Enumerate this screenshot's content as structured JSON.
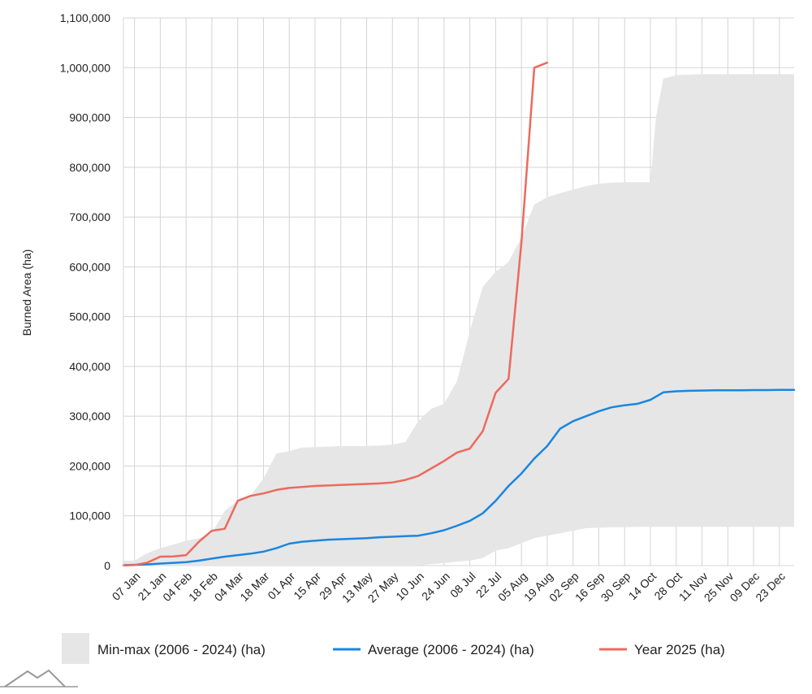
{
  "chart_data": {
    "type": "area",
    "title": "",
    "xlabel": "",
    "ylabel": "Burned Area (ha)",
    "ylim": [
      0,
      1100000
    ],
    "yticks": [
      0,
      100000,
      200000,
      300000,
      400000,
      500000,
      600000,
      700000,
      800000,
      900000,
      1000000,
      1100000
    ],
    "ytick_labels": [
      "0",
      "100,000",
      "200,000",
      "300,000",
      "400,000",
      "500,000",
      "600,000",
      "700,000",
      "800,000",
      "900,000",
      "1,000,000",
      "1,100,000"
    ],
    "x_unit": "day of year",
    "xlim": [
      1,
      365
    ],
    "xticks": [
      7,
      21,
      35,
      49,
      63,
      77,
      91,
      105,
      119,
      133,
      147,
      161,
      175,
      189,
      203,
      217,
      231,
      245,
      259,
      273,
      287,
      301,
      315,
      329,
      343,
      357
    ],
    "xtick_labels": [
      "07 Jan",
      "21 Jan",
      "04 Feb",
      "18 Feb",
      "04 Mar",
      "18 Mar",
      "01 Apr",
      "15 Apr",
      "29 Apr",
      "13 May",
      "27 May",
      "10 Jun",
      "24 Jun",
      "08 Jul",
      "22 Jul",
      "05 Aug",
      "19 Aug",
      "02 Sep",
      "16 Sep",
      "30 Sep",
      "14 Oct",
      "28 Oct",
      "11 Nov",
      "25 Nov",
      "09 Dec",
      "23 Dec"
    ],
    "grid": true,
    "legend_position": "bottom",
    "series": [
      {
        "name": "Min-max (2006 - 2024) (ha)",
        "kind": "band",
        "color": "#e6e6e6",
        "x": [
          1,
          7,
          14,
          21,
          28,
          35,
          42,
          49,
          56,
          63,
          70,
          77,
          84,
          91,
          98,
          105,
          112,
          119,
          126,
          133,
          140,
          147,
          154,
          161,
          168,
          175,
          182,
          189,
          196,
          203,
          210,
          217,
          224,
          231,
          238,
          245,
          252,
          259,
          266,
          273,
          280,
          287,
          290,
          294,
          301,
          308,
          315,
          322,
          329,
          336,
          343,
          350,
          357,
          365
        ],
        "upper": [
          10000,
          10000,
          25000,
          35000,
          42000,
          50000,
          55000,
          65000,
          110000,
          130000,
          140000,
          175000,
          225000,
          230000,
          237000,
          238000,
          239000,
          240000,
          240000,
          240000,
          241000,
          243000,
          248000,
          290000,
          315000,
          325000,
          370000,
          470000,
          560000,
          590000,
          610000,
          660000,
          725000,
          740000,
          748000,
          755000,
          762000,
          767000,
          769000,
          770000,
          770000,
          770000,
          900000,
          978000,
          985000,
          986000,
          987000,
          987000,
          987000,
          987000,
          987000,
          987000,
          987000,
          987000
        ],
        "lower": [
          0,
          0,
          0,
          0,
          0,
          0,
          0,
          0,
          0,
          0,
          0,
          0,
          0,
          0,
          0,
          0,
          0,
          0,
          0,
          0,
          0,
          0,
          0,
          0,
          3000,
          5000,
          8000,
          10000,
          15000,
          30000,
          35000,
          45000,
          55000,
          60000,
          65000,
          70000,
          75000,
          76000,
          77000,
          77000,
          78000,
          78000,
          78000,
          78000,
          78000,
          78000,
          78000,
          78000,
          78000,
          78000,
          78000,
          78000,
          78000,
          78000
        ]
      },
      {
        "name": "Average (2006 - 2024) (ha)",
        "kind": "line",
        "color": "#1a86e0",
        "x": [
          1,
          7,
          14,
          21,
          28,
          35,
          42,
          49,
          56,
          63,
          70,
          77,
          84,
          91,
          98,
          105,
          112,
          119,
          126,
          133,
          140,
          147,
          154,
          161,
          168,
          175,
          182,
          189,
          196,
          203,
          210,
          217,
          224,
          231,
          238,
          245,
          252,
          259,
          266,
          273,
          280,
          287,
          294,
          301,
          308,
          315,
          322,
          329,
          336,
          343,
          350,
          357,
          365
        ],
        "y": [
          1000,
          1500,
          2500,
          4000,
          5500,
          7000,
          10000,
          14000,
          18000,
          21000,
          24000,
          28000,
          35000,
          44000,
          48000,
          50000,
          52000,
          53000,
          54000,
          55000,
          57000,
          58000,
          59000,
          60000,
          65000,
          71000,
          80000,
          90000,
          105000,
          130000,
          160000,
          185000,
          215000,
          240000,
          275000,
          290000,
          300000,
          310000,
          318000,
          322000,
          325000,
          333000,
          348000,
          350000,
          351000,
          351500,
          352000,
          352000,
          352000,
          352500,
          352500,
          353000,
          353000
        ]
      },
      {
        "name": "Year 2025 (ha)",
        "kind": "line",
        "color": "#ec6a5e",
        "x": [
          1,
          7,
          14,
          21,
          28,
          35,
          42,
          49,
          56,
          63,
          70,
          77,
          84,
          91,
          98,
          105,
          112,
          119,
          126,
          133,
          140,
          147,
          154,
          161,
          168,
          175,
          182,
          189,
          196,
          203,
          210,
          217,
          224,
          231,
          238,
          245,
          252,
          259,
          266,
          273,
          280,
          287,
          294,
          301,
          308,
          315,
          322,
          329,
          336,
          343,
          350,
          357,
          365
        ],
        "y": [
          500,
          1000,
          6000,
          18000,
          18500,
          21000,
          48000,
          70000,
          74000,
          130000,
          140000,
          145000,
          152000,
          156000,
          158000,
          160000,
          161000,
          162000,
          163000,
          164000,
          165000,
          167000,
          172000,
          180000,
          195000,
          210000,
          227000,
          235000,
          270000,
          347000,
          375000,
          650000,
          1000000,
          1010000,
          null,
          null,
          null,
          null,
          null,
          null,
          null,
          null,
          null,
          null,
          null,
          null,
          null,
          null,
          null,
          null,
          null,
          null,
          null
        ]
      }
    ]
  },
  "legend": {
    "items": [
      {
        "label": "Min-max (2006 - 2024) (ha)",
        "color": "#e6e6e6",
        "kind": "box"
      },
      {
        "label": "Average (2006 - 2024) (ha)",
        "color": "#1a86e0",
        "kind": "line"
      },
      {
        "label": "Year 2025 (ha)",
        "color": "#ec6a5e",
        "kind": "line"
      }
    ]
  },
  "logo_icon": "mountain-logo-icon"
}
